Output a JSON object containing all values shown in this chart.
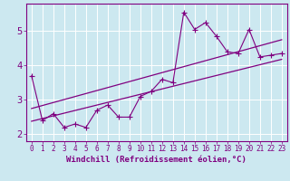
{
  "xlabel": "Windchill (Refroidissement éolien,°C)",
  "xlim": [
    -0.5,
    23.5
  ],
  "ylim": [
    1.8,
    5.8
  ],
  "xticks": [
    0,
    1,
    2,
    3,
    4,
    5,
    6,
    7,
    8,
    9,
    10,
    11,
    12,
    13,
    14,
    15,
    16,
    17,
    18,
    19,
    20,
    21,
    22,
    23
  ],
  "yticks": [
    2,
    3,
    4,
    5
  ],
  "data_x": [
    0,
    1,
    2,
    3,
    4,
    5,
    6,
    7,
    8,
    9,
    10,
    11,
    12,
    13,
    14,
    15,
    16,
    17,
    18,
    19,
    20,
    21,
    22,
    23
  ],
  "data_y": [
    3.7,
    2.4,
    2.6,
    2.2,
    2.3,
    2.2,
    2.7,
    2.85,
    2.5,
    2.5,
    3.1,
    3.25,
    3.6,
    3.5,
    5.55,
    5.05,
    5.25,
    4.85,
    4.4,
    4.35,
    5.05,
    4.25,
    4.3,
    4.35
  ],
  "trend1_x": [
    0,
    23
  ],
  "trend1_y": [
    2.38,
    4.18
  ],
  "trend2_x": [
    0,
    23
  ],
  "trend2_y": [
    2.75,
    4.75
  ],
  "line_color": "#800080",
  "bg_color": "#cce8f0",
  "grid_color": "#b0d8e8",
  "marker": "+",
  "marker_size": 4,
  "tick_fontsize": 5.5,
  "xlabel_fontsize": 6.5
}
